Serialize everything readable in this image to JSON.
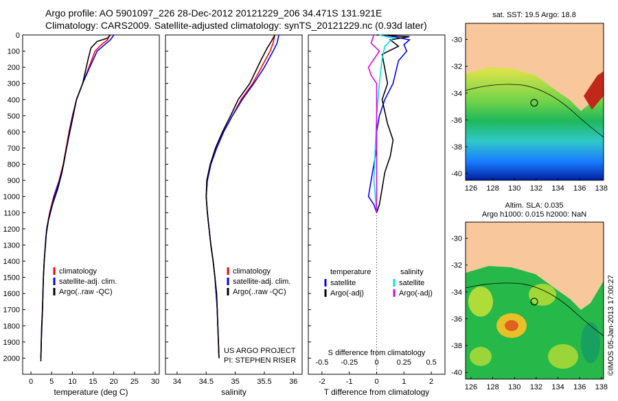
{
  "header": {
    "line1": "Argo profile: AO 5901097_226 28-Dec-2012 20121229_206 34.471S 131.921E",
    "line2": "Climatology: CARS2009. Satellite-adjusted climatology: synTS_20121229.nc (0.93d later)"
  },
  "side_stamp": "©IMOS 05-Jan-2013 17:00:27",
  "chart_data": [
    {
      "id": "temperature",
      "type": "line",
      "xlabel": "temperature (deg C)",
      "ylabel": "",
      "xlim": [
        -2,
        31
      ],
      "ylim": [
        2100,
        0
      ],
      "xticks": [
        0,
        5,
        10,
        15,
        20,
        25,
        30
      ],
      "yticks": [
        0,
        100,
        200,
        300,
        400,
        500,
        600,
        700,
        800,
        900,
        1000,
        1100,
        1200,
        1300,
        1400,
        1500,
        1600,
        1700,
        1800,
        1900,
        2000
      ],
      "legend": [
        "climatology",
        "satellite-adj. clim.",
        "Argo(..raw -QC)"
      ],
      "series": [
        {
          "name": "climatology",
          "color": "#ff0000",
          "points": [
            [
              19,
              0
            ],
            [
              18.5,
              30
            ],
            [
              17,
              60
            ],
            [
              15.5,
              100
            ],
            [
              14,
              200
            ],
            [
              12.5,
              300
            ],
            [
              11,
              400
            ],
            [
              10,
              500
            ],
            [
              9.2,
              600
            ],
            [
              8.5,
              700
            ],
            [
              7.8,
              800
            ],
            [
              6.8,
              900
            ],
            [
              5.5,
              1000
            ],
            [
              4.5,
              1100
            ],
            [
              3.8,
              1200
            ],
            [
              3.5,
              1300
            ],
            [
              3.2,
              1400
            ],
            [
              3,
              1500
            ],
            [
              2.9,
              1600
            ],
            [
              2.8,
              1700
            ],
            [
              2.6,
              1800
            ],
            [
              2.5,
              1900
            ],
            [
              2.4,
              2000
            ]
          ]
        },
        {
          "name": "satellite-adj. clim.",
          "color": "#0000ff",
          "points": [
            [
              20,
              0
            ],
            [
              19.2,
              30
            ],
            [
              17.8,
              60
            ],
            [
              16,
              100
            ],
            [
              14.2,
              200
            ],
            [
              12.5,
              300
            ],
            [
              11,
              400
            ],
            [
              10.1,
              500
            ],
            [
              9.3,
              600
            ],
            [
              8.6,
              700
            ],
            [
              7.9,
              800
            ],
            [
              6.9,
              900
            ],
            [
              5.6,
              1000
            ],
            [
              4.6,
              1100
            ],
            [
              3.8,
              1200
            ],
            [
              3.5,
              1300
            ],
            [
              3.2,
              1400
            ],
            [
              3,
              1500
            ],
            [
              2.9,
              1600
            ],
            [
              2.8,
              1700
            ],
            [
              2.6,
              1800
            ],
            [
              2.5,
              1900
            ],
            [
              2.4,
              2000
            ]
          ]
        },
        {
          "name": "Argo(..raw -QC)",
          "color": "#000000",
          "points": [
            [
              19.2,
              0
            ],
            [
              18.5,
              20
            ],
            [
              16,
              40
            ],
            [
              14.5,
              80
            ],
            [
              13.8,
              150
            ],
            [
              12.5,
              300
            ],
            [
              11,
              400
            ],
            [
              9.8,
              550
            ],
            [
              9,
              650
            ],
            [
              8.2,
              750
            ],
            [
              7.5,
              850
            ],
            [
              6.5,
              950
            ],
            [
              5.2,
              1050
            ],
            [
              4.2,
              1150
            ],
            [
              3.6,
              1250
            ],
            [
              3.2,
              1400
            ],
            [
              3,
              1500
            ],
            [
              2.8,
              1700
            ],
            [
              2.5,
              1900
            ],
            [
              2.4,
              2020
            ]
          ]
        }
      ]
    },
    {
      "id": "salinity",
      "type": "line",
      "xlabel": "salinity",
      "ylabel": "",
      "xlim": [
        33.8,
        36.15
      ],
      "ylim": [
        2100,
        0
      ],
      "xticks": [
        34,
        34.5,
        35,
        35.5,
        36
      ],
      "legend": [
        "climatology",
        "satellite-adj. clim.",
        "Argo(..raw -QC)"
      ],
      "annotation": [
        "US ARGO PROJECT",
        "PI: STEPHEN RISER"
      ],
      "series": [
        {
          "name": "climatology",
          "color": "#ff0000",
          "points": [
            [
              35.68,
              0
            ],
            [
              35.65,
              50
            ],
            [
              35.6,
              100
            ],
            [
              35.45,
              200
            ],
            [
              35.3,
              300
            ],
            [
              35.1,
              400
            ],
            [
              34.95,
              500
            ],
            [
              34.8,
              600
            ],
            [
              34.68,
              700
            ],
            [
              34.58,
              800
            ],
            [
              34.52,
              900
            ],
            [
              34.5,
              1000
            ],
            [
              34.52,
              1100
            ],
            [
              34.55,
              1200
            ],
            [
              34.58,
              1300
            ],
            [
              34.62,
              1400
            ],
            [
              34.65,
              1500
            ],
            [
              34.67,
              1600
            ],
            [
              34.69,
              1700
            ],
            [
              34.7,
              1800
            ],
            [
              34.71,
              1900
            ],
            [
              34.72,
              2000
            ]
          ]
        },
        {
          "name": "satellite-adj. clim.",
          "color": "#0000ff",
          "points": [
            [
              35.75,
              0
            ],
            [
              35.72,
              50
            ],
            [
              35.65,
              100
            ],
            [
              35.5,
              200
            ],
            [
              35.32,
              300
            ],
            [
              35.12,
              400
            ],
            [
              34.95,
              500
            ],
            [
              34.8,
              600
            ],
            [
              34.68,
              700
            ],
            [
              34.58,
              800
            ],
            [
              34.52,
              900
            ],
            [
              34.5,
              1000
            ],
            [
              34.52,
              1100
            ],
            [
              34.55,
              1200
            ],
            [
              34.58,
              1300
            ],
            [
              34.62,
              1400
            ],
            [
              34.65,
              1500
            ],
            [
              34.67,
              1600
            ],
            [
              34.69,
              1700
            ],
            [
              34.7,
              1800
            ],
            [
              34.71,
              1900
            ],
            [
              34.72,
              2000
            ]
          ]
        },
        {
          "name": "Argo(..raw -QC)",
          "color": "#000000",
          "points": [
            [
              35.68,
              0
            ],
            [
              35.62,
              40
            ],
            [
              35.55,
              80
            ],
            [
              35.45,
              150
            ],
            [
              35.25,
              300
            ],
            [
              35.05,
              400
            ],
            [
              34.92,
              500
            ],
            [
              34.78,
              600
            ],
            [
              34.66,
              700
            ],
            [
              34.57,
              800
            ],
            [
              34.51,
              900
            ],
            [
              34.5,
              1000
            ],
            [
              34.52,
              1100
            ],
            [
              34.55,
              1200
            ],
            [
              34.58,
              1300
            ],
            [
              34.62,
              1400
            ],
            [
              34.65,
              1500
            ],
            [
              34.68,
              1600
            ],
            [
              34.7,
              1800
            ],
            [
              34.72,
              2000
            ]
          ]
        }
      ]
    },
    {
      "id": "difference",
      "type": "line",
      "xlabel": "T difference from climatology",
      "top_xlabel": "S difference from climatology",
      "xlim": [
        -2.5,
        2.5
      ],
      "ylim": [
        2100,
        0
      ],
      "xticks": [
        -2,
        -1,
        0,
        1,
        2
      ],
      "s_ticks": [
        {
          "x": -2,
          "label": "-0.5"
        },
        {
          "x": -1,
          "label": "-0.25"
        },
        {
          "x": 0,
          "label": "0"
        },
        {
          "x": 1,
          "label": "0.25"
        },
        {
          "x": 2,
          "label": "0.5"
        }
      ],
      "legend_temperature": {
        "title": "temperature",
        "items": [
          "satellite",
          "Argo(-adj)"
        ]
      },
      "legend_salinity": {
        "title": "salinity",
        "items": [
          "satellite",
          "Argo(-adj)"
        ]
      },
      "series": [
        {
          "name": "temperature satellite",
          "color": "#0000ff",
          "points": [
            [
              0.3,
              0
            ],
            [
              1.2,
              30
            ],
            [
              1.0,
              60
            ],
            [
              1.1,
              100
            ],
            [
              0.8,
              160
            ],
            [
              0.6,
              300
            ],
            [
              0.3,
              400
            ],
            [
              0.1,
              500
            ],
            [
              0,
              600
            ],
            [
              0,
              700
            ],
            [
              -0.1,
              800
            ],
            [
              -0.2,
              900
            ],
            [
              -0.3,
              1000
            ],
            [
              -0.1,
              1050
            ],
            [
              0,
              1100
            ]
          ]
        },
        {
          "name": "temperature Argo(-adj)",
          "color": "#000000",
          "points": [
            [
              0,
              0
            ],
            [
              1.2,
              10
            ],
            [
              0.5,
              30
            ],
            [
              0.8,
              70
            ],
            [
              0.2,
              120
            ],
            [
              0.4,
              300
            ],
            [
              0.2,
              400
            ],
            [
              0.4,
              550
            ],
            [
              0.6,
              650
            ],
            [
              0.5,
              750
            ],
            [
              0.3,
              850
            ],
            [
              0.2,
              950
            ],
            [
              0.1,
              1050
            ],
            [
              0,
              1100
            ]
          ]
        },
        {
          "name": "salinity satellite",
          "color": "#00e0e0",
          "points": [
            [
              0.1,
              0
            ],
            [
              0.6,
              20
            ],
            [
              0.3,
              70
            ],
            [
              0.2,
              150
            ],
            [
              0.1,
              300
            ],
            [
              0,
              500
            ],
            [
              -0.05,
              700
            ],
            [
              -0.1,
              900
            ],
            [
              0,
              1100
            ]
          ]
        },
        {
          "name": "salinity Argo(-adj)",
          "color": "#e000e0",
          "points": [
            [
              -0.1,
              0
            ],
            [
              -0.2,
              50
            ],
            [
              0.1,
              100
            ],
            [
              -0.3,
              200
            ],
            [
              -0.2,
              250
            ],
            [
              0,
              300
            ],
            [
              0,
              1100
            ]
          ]
        }
      ]
    },
    {
      "id": "sst-map",
      "type": "heatmap",
      "title": "sat. SST: 19.5 Argo: 18.8",
      "xlim": [
        125.5,
        138.2
      ],
      "ylim": [
        -40.5,
        -28.8
      ],
      "xticks": [
        126,
        128,
        130,
        132,
        134,
        136,
        138
      ],
      "yticks": [
        -30,
        -32,
        -34,
        -36,
        -38,
        -40
      ],
      "argo_position": [
        131.921,
        -34.471
      ]
    },
    {
      "id": "sla-map",
      "type": "heatmap",
      "title_line1": "Altim. SLA: 0.035",
      "title_line2": "Argo h1000: 0.015 h2000: NaN",
      "xlim": [
        125.5,
        138.2
      ],
      "ylim": [
        -40.5,
        -28.8
      ],
      "xticks": [
        126,
        128,
        130,
        132,
        134,
        136,
        138
      ],
      "yticks": [
        -30,
        -32,
        -34,
        -36,
        -38,
        -40
      ],
      "argo_position": [
        131.921,
        -34.471
      ]
    }
  ]
}
